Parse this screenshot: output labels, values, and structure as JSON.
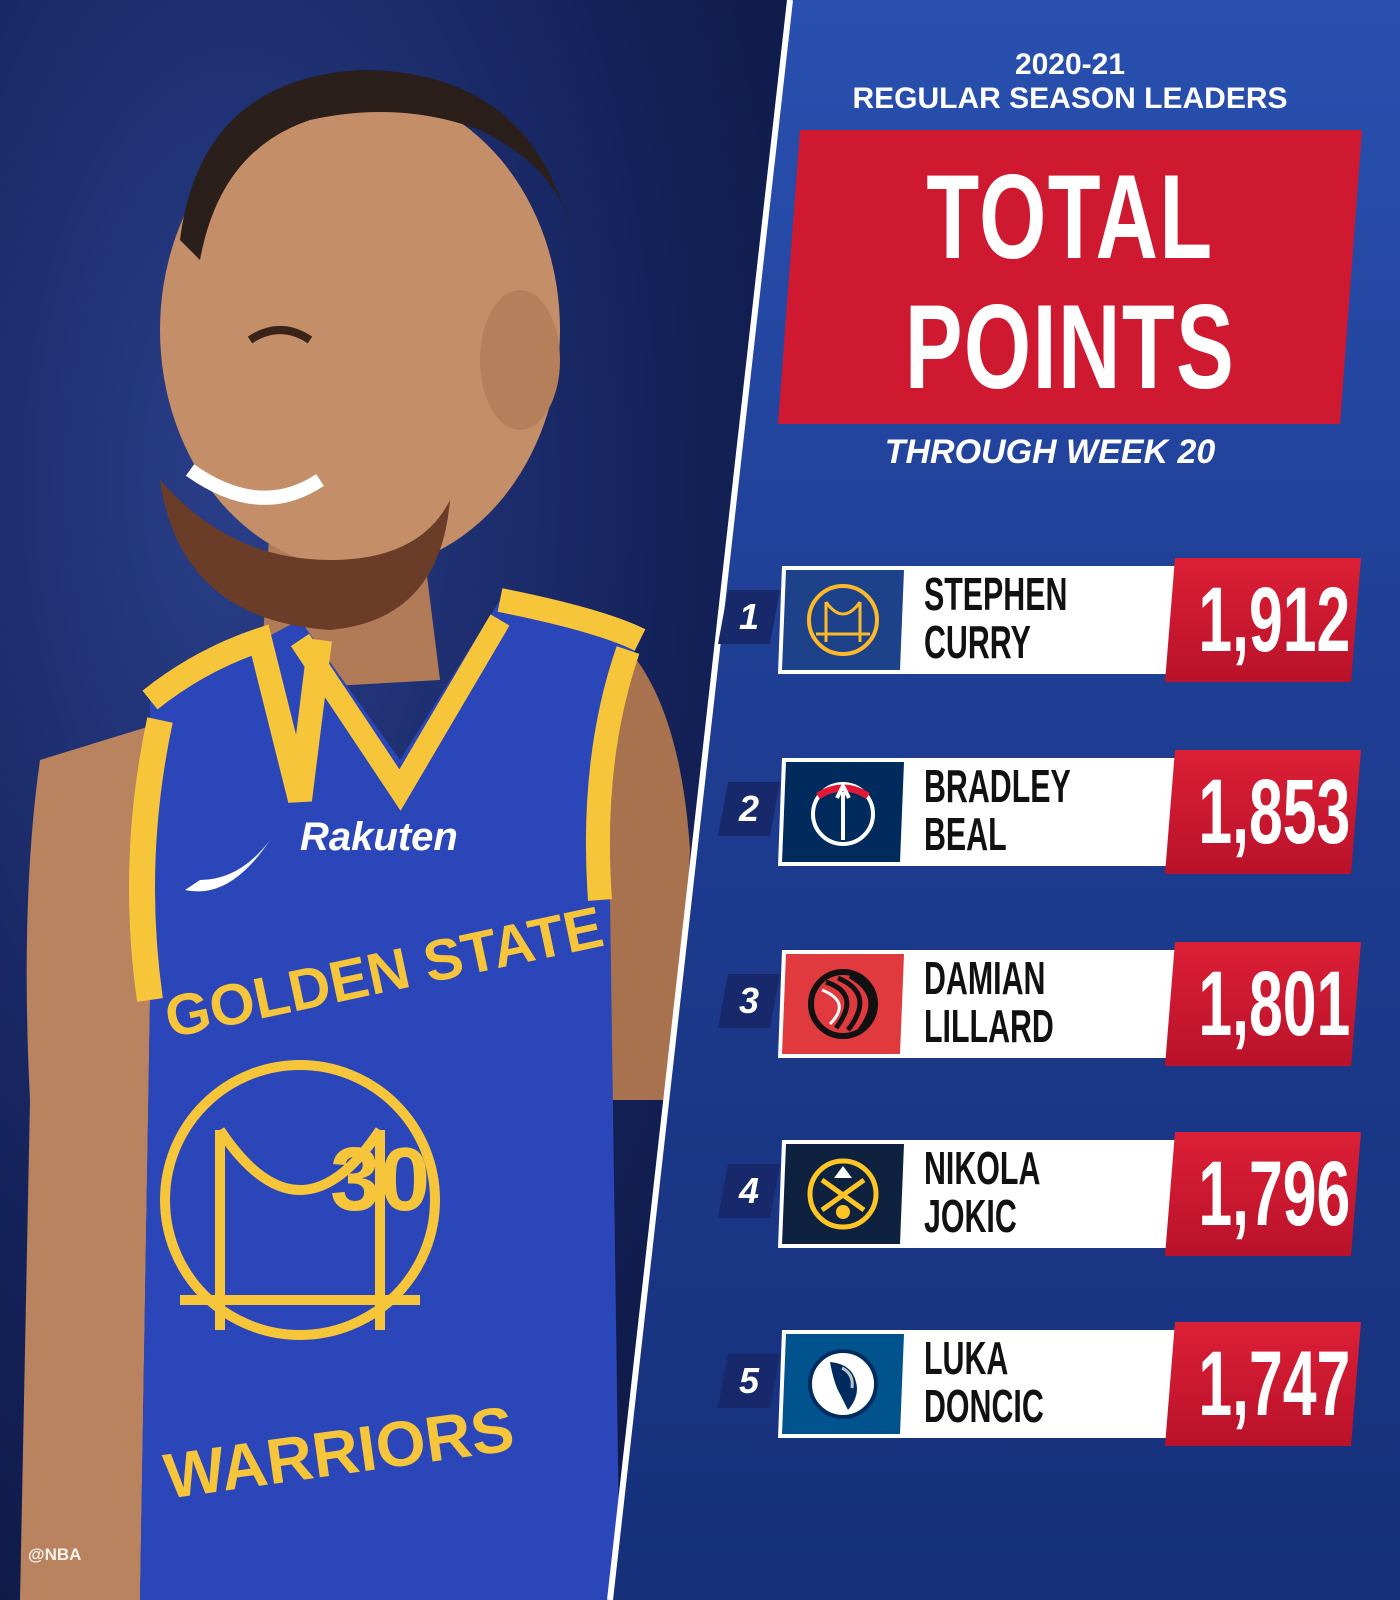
{
  "header": {
    "season": "2020-21",
    "category": "REGULAR SEASON LEADERS",
    "title_line1": "TOTAL",
    "title_line2": "POINTS",
    "subtitle": "THROUGH WEEK 20"
  },
  "photo": {
    "jersey_number": "30",
    "jersey_text_top": "GOLDEN STATE",
    "jersey_text_bottom": "WARRIORS",
    "sponsor": "Rakuten"
  },
  "leaders": [
    {
      "rank": "1",
      "first": "STEPHEN",
      "last": "CURRY",
      "points": "1,912",
      "team_logo": "warriors-logo",
      "logo_bg": "#1d428a"
    },
    {
      "rank": "2",
      "first": "BRADLEY",
      "last": "BEAL",
      "points": "1,853",
      "team_logo": "wizards-logo",
      "logo_bg": "#002b5c"
    },
    {
      "rank": "3",
      "first": "DAMIAN",
      "last": "LILLARD",
      "points": "1,801",
      "team_logo": "trail-blazers-logo",
      "logo_bg": "#e03a3e"
    },
    {
      "rank": "4",
      "first": "NIKOLA",
      "last": "JOKIC",
      "points": "1,796",
      "team_logo": "nuggets-logo",
      "logo_bg": "#0e2240"
    },
    {
      "rank": "5",
      "first": "LUKA",
      "last": "DONCIC",
      "points": "1,747",
      "team_logo": "mavericks-logo",
      "logo_bg": "#00538c"
    }
  ],
  "footer": {
    "watermark": "@NBA"
  },
  "colors": {
    "panel_blue": "#1e3d92",
    "accent_red": "#cf1931",
    "warriors_blue": "#1d428a",
    "warriors_gold": "#fdb927"
  }
}
